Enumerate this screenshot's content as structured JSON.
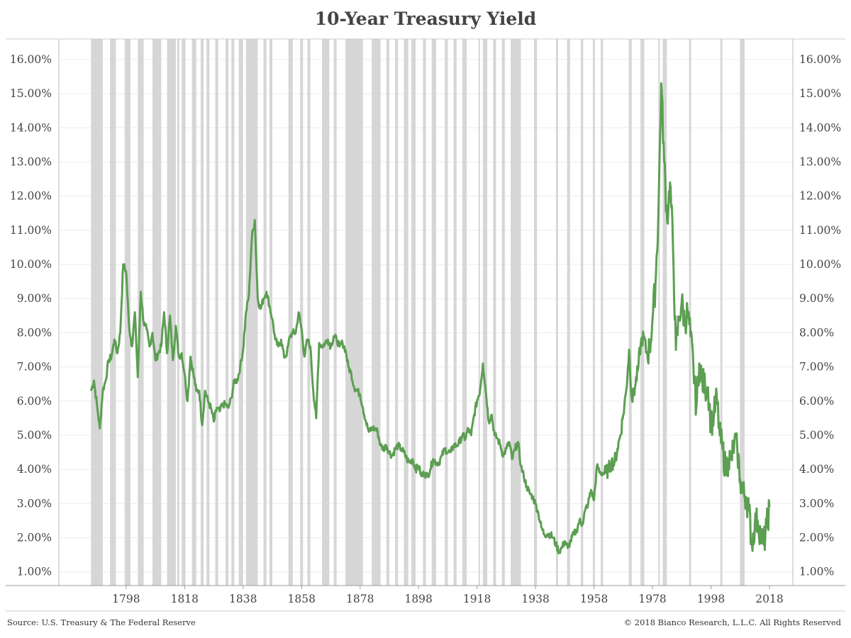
{
  "chart_data": {
    "type": "line",
    "title": "10-Year Treasury Yield",
    "xlabel": "",
    "ylabel": "",
    "x_range": [
      1775,
      2026
    ],
    "x_ticks": [
      "1798",
      "1818",
      "1838",
      "1858",
      "1878",
      "1898",
      "1918",
      "1938",
      "1958",
      "1978",
      "1998",
      "2018"
    ],
    "ylim": [
      0.6,
      16.6
    ],
    "y_ticks": [
      "1.00%",
      "2.00%",
      "3.00%",
      "4.00%",
      "5.00%",
      "6.00%",
      "7.00%",
      "8.00%",
      "9.00%",
      "10.00%",
      "11.00%",
      "12.00%",
      "13.00%",
      "14.00%",
      "15.00%",
      "16.00%"
    ],
    "y_axis_sides": "left and right",
    "grid": true,
    "line_color": "#5c9e52",
    "shade_color": "#d6d6d6",
    "shaded_periods": [
      [
        1786,
        1790
      ],
      [
        1792.5,
        1794.5
      ],
      [
        1797.5,
        1799.5
      ],
      [
        1802,
        1804
      ],
      [
        1807,
        1810
      ],
      [
        1812,
        1815
      ],
      [
        1815.5,
        1816.2
      ],
      [
        1817,
        1818.3
      ],
      [
        1820.5,
        1822
      ],
      [
        1823.5,
        1824.5
      ],
      [
        1825.5,
        1826.5
      ],
      [
        1828.5,
        1829.5
      ],
      [
        1832,
        1833
      ],
      [
        1834,
        1835
      ],
      [
        1836.5,
        1838
      ],
      [
        1839,
        1843
      ],
      [
        1845,
        1846
      ],
      [
        1847,
        1848
      ],
      [
        1853.5,
        1855
      ],
      [
        1857.5,
        1858.5
      ],
      [
        1860,
        1861
      ],
      [
        1865,
        1867.5
      ],
      [
        1869,
        1870
      ],
      [
        1873,
        1879
      ],
      [
        1882,
        1885
      ],
      [
        1887,
        1888
      ],
      [
        1890,
        1891
      ],
      [
        1893,
        1894.5
      ],
      [
        1895.5,
        1897
      ],
      [
        1899.5,
        1900.5
      ],
      [
        1902.5,
        1904
      ],
      [
        1907,
        1908
      ],
      [
        1910,
        1911
      ],
      [
        1913,
        1914.5
      ],
      [
        1918.5,
        1919
      ],
      [
        1920,
        1921.5
      ],
      [
        1923.5,
        1924.5
      ],
      [
        1926.5,
        1927.5
      ],
      [
        1929.5,
        1933
      ],
      [
        1937.5,
        1938.5
      ],
      [
        1945,
        1945.7
      ],
      [
        1948.8,
        1949.8
      ],
      [
        1953.5,
        1954.3
      ],
      [
        1957.6,
        1958.3
      ],
      [
        1960.3,
        1961.1
      ],
      [
        1969.9,
        1970.9
      ],
      [
        1973.9,
        1975.2
      ],
      [
        1980,
        1980.5
      ],
      [
        1981.5,
        1982.9
      ],
      [
        1990.5,
        1991.2
      ],
      [
        2001.2,
        2001.9
      ],
      [
        2007.9,
        2009.5
      ]
    ],
    "series": [
      {
        "values": [
          [
            1786,
            6.3
          ],
          [
            1787,
            6.6
          ],
          [
            1788,
            5.9
          ],
          [
            1789,
            5.2
          ],
          [
            1790,
            6.3
          ],
          [
            1791,
            6.6
          ],
          [
            1792,
            7.2
          ],
          [
            1793,
            7.3
          ],
          [
            1794,
            7.8
          ],
          [
            1795,
            7.4
          ],
          [
            1796,
            8.0
          ],
          [
            1797,
            10.0
          ],
          [
            1798,
            9.8
          ],
          [
            1799,
            8.2
          ],
          [
            1800,
            7.6
          ],
          [
            1801,
            8.6
          ],
          [
            1802,
            6.7
          ],
          [
            1803,
            9.2
          ],
          [
            1804,
            8.3
          ],
          [
            1805,
            8.1
          ],
          [
            1806,
            7.6
          ],
          [
            1807,
            8.0
          ],
          [
            1808,
            7.2
          ],
          [
            1809,
            7.4
          ],
          [
            1810,
            7.6
          ],
          [
            1811,
            8.6
          ],
          [
            1812,
            7.4
          ],
          [
            1813,
            8.5
          ],
          [
            1814,
            7.2
          ],
          [
            1815,
            8.2
          ],
          [
            1816,
            7.3
          ],
          [
            1817,
            7.4
          ],
          [
            1818,
            6.8
          ],
          [
            1819,
            6.0
          ],
          [
            1820,
            7.3
          ],
          [
            1821,
            6.8
          ],
          [
            1822,
            6.3
          ],
          [
            1823,
            6.3
          ],
          [
            1824,
            5.3
          ],
          [
            1825,
            6.3
          ],
          [
            1826,
            6.0
          ],
          [
            1827,
            5.8
          ],
          [
            1828,
            5.4
          ],
          [
            1829,
            5.8
          ],
          [
            1830,
            5.7
          ],
          [
            1831,
            5.9
          ],
          [
            1832,
            5.9
          ],
          [
            1833,
            5.8
          ],
          [
            1834,
            6.1
          ],
          [
            1835,
            6.6
          ],
          [
            1836,
            6.6
          ],
          [
            1837,
            7.0
          ],
          [
            1838,
            7.5
          ],
          [
            1839,
            8.6
          ],
          [
            1840,
            9.1
          ],
          [
            1841,
            10.8
          ],
          [
            1842,
            11.3
          ],
          [
            1843,
            9.0
          ],
          [
            1844,
            8.7
          ],
          [
            1845,
            9.0
          ],
          [
            1846,
            9.2
          ],
          [
            1847,
            8.8
          ],
          [
            1848,
            8.4
          ],
          [
            1849,
            7.8
          ],
          [
            1850,
            7.6
          ],
          [
            1851,
            7.8
          ],
          [
            1852,
            7.3
          ],
          [
            1853,
            7.4
          ],
          [
            1854,
            7.9
          ],
          [
            1855,
            8.0
          ],
          [
            1856,
            8.0
          ],
          [
            1857,
            8.6
          ],
          [
            1858,
            8.1
          ],
          [
            1859,
            7.3
          ],
          [
            1860,
            7.8
          ],
          [
            1861,
            7.6
          ],
          [
            1862,
            6.3
          ],
          [
            1863,
            5.5
          ],
          [
            1864,
            7.7
          ],
          [
            1865,
            7.6
          ],
          [
            1866,
            7.7
          ],
          [
            1867,
            7.8
          ],
          [
            1868,
            7.6
          ],
          [
            1869,
            7.9
          ],
          [
            1870,
            7.8
          ],
          [
            1871,
            7.6
          ],
          [
            1872,
            7.7
          ],
          [
            1873,
            7.5
          ],
          [
            1874,
            7.0
          ],
          [
            1875,
            6.8
          ],
          [
            1876,
            6.4
          ],
          [
            1877,
            6.3
          ],
          [
            1878,
            6.2
          ],
          [
            1879,
            5.8
          ],
          [
            1880,
            5.4
          ],
          [
            1881,
            5.1
          ],
          [
            1882,
            5.2
          ],
          [
            1883,
            5.2
          ],
          [
            1884,
            5.1
          ],
          [
            1885,
            4.7
          ],
          [
            1886,
            4.6
          ],
          [
            1887,
            4.7
          ],
          [
            1888,
            4.5
          ],
          [
            1889,
            4.4
          ],
          [
            1890,
            4.6
          ],
          [
            1891,
            4.7
          ],
          [
            1892,
            4.6
          ],
          [
            1893,
            4.5
          ],
          [
            1894,
            4.3
          ],
          [
            1895,
            4.2
          ],
          [
            1896,
            4.3
          ],
          [
            1897,
            4.0
          ],
          [
            1898,
            4.1
          ],
          [
            1899,
            3.8
          ],
          [
            1900,
            3.9
          ],
          [
            1901,
            3.8
          ],
          [
            1902,
            4.0
          ],
          [
            1903,
            4.3
          ],
          [
            1904,
            4.2
          ],
          [
            1905,
            4.2
          ],
          [
            1906,
            4.4
          ],
          [
            1907,
            4.6
          ],
          [
            1908,
            4.5
          ],
          [
            1909,
            4.5
          ],
          [
            1910,
            4.7
          ],
          [
            1911,
            4.7
          ],
          [
            1912,
            4.8
          ],
          [
            1913,
            5.0
          ],
          [
            1914,
            4.9
          ],
          [
            1915,
            5.2
          ],
          [
            1916,
            5.0
          ],
          [
            1917,
            5.6
          ],
          [
            1918,
            6.0
          ],
          [
            1919,
            6.3
          ],
          [
            1920,
            7.1
          ],
          [
            1921,
            6.3
          ],
          [
            1922,
            5.4
          ],
          [
            1923,
            5.6
          ],
          [
            1924,
            5.0
          ],
          [
            1925,
            4.9
          ],
          [
            1926,
            4.7
          ],
          [
            1927,
            4.4
          ],
          [
            1928,
            4.6
          ],
          [
            1929,
            4.8
          ],
          [
            1930,
            4.3
          ],
          [
            1931,
            4.6
          ],
          [
            1932,
            4.8
          ],
          [
            1933,
            4.1
          ],
          [
            1934,
            3.8
          ],
          [
            1935,
            3.5
          ],
          [
            1936,
            3.3
          ],
          [
            1937,
            3.2
          ],
          [
            1938,
            3.0
          ],
          [
            1939,
            2.7
          ],
          [
            1940,
            2.3
          ],
          [
            1941,
            2.1
          ],
          [
            1942,
            2.1
          ],
          [
            1943,
            2.1
          ],
          [
            1944,
            2.0
          ],
          [
            1945,
            1.8
          ],
          [
            1946,
            1.6
          ],
          [
            1947,
            1.7
          ],
          [
            1948,
            1.9
          ],
          [
            1949,
            1.7
          ],
          [
            1950,
            1.9
          ],
          [
            1951,
            2.1
          ],
          [
            1952,
            2.2
          ],
          [
            1953,
            2.5
          ],
          [
            1954,
            2.4
          ],
          [
            1955,
            2.8
          ],
          [
            1956,
            3.0
          ],
          [
            1957,
            3.4
          ],
          [
            1958,
            3.1
          ],
          [
            1959,
            4.1
          ],
          [
            1960,
            3.9
          ],
          [
            1961,
            3.9
          ],
          [
            1962,
            3.9
          ],
          [
            1963,
            4.0
          ],
          [
            1964,
            4.2
          ],
          [
            1965,
            4.2
          ],
          [
            1966,
            4.6
          ],
          [
            1967,
            5.0
          ],
          [
            1968,
            5.6
          ],
          [
            1969,
            6.3
          ],
          [
            1970,
            7.5
          ],
          [
            1971,
            6.0
          ],
          [
            1972,
            6.4
          ],
          [
            1973,
            6.9
          ],
          [
            1974,
            7.7
          ],
          [
            1975,
            7.9
          ],
          [
            1976,
            7.4
          ],
          [
            1977,
            7.5
          ],
          [
            1978,
            8.4
          ],
          [
            1979,
            9.4
          ],
          [
            1980,
            11.4
          ],
          [
            1981,
            15.3
          ],
          [
            1982,
            13.0
          ],
          [
            1983,
            11.3
          ],
          [
            1984,
            12.4
          ],
          [
            1985,
            10.6
          ],
          [
            1986,
            7.5
          ],
          [
            1987,
            8.4
          ],
          [
            1988,
            8.9
          ],
          [
            1989,
            8.3
          ],
          [
            1990,
            8.6
          ],
          [
            1991,
            7.9
          ],
          [
            1992,
            7.0
          ],
          [
            1993,
            5.8
          ],
          [
            1994,
            7.1
          ],
          [
            1995,
            6.6
          ],
          [
            1996,
            6.4
          ],
          [
            1997,
            6.4
          ],
          [
            1998,
            5.3
          ],
          [
            1999,
            5.6
          ],
          [
            2000,
            6.1
          ],
          [
            2001,
            5.0
          ],
          [
            2002,
            4.6
          ],
          [
            2003,
            4.0
          ],
          [
            2004,
            4.3
          ],
          [
            2005,
            4.3
          ],
          [
            2006,
            4.8
          ],
          [
            2007,
            4.6
          ],
          [
            2008,
            3.7
          ],
          [
            2009,
            3.3
          ],
          [
            2010,
            3.2
          ],
          [
            2011,
            2.8
          ],
          [
            2012,
            1.8
          ],
          [
            2013,
            2.4
          ],
          [
            2014,
            2.5
          ],
          [
            2015,
            2.1
          ],
          [
            2016,
            1.8
          ],
          [
            2017,
            2.3
          ],
          [
            2018,
            2.9
          ]
        ]
      }
    ]
  },
  "footer": {
    "source": "Source: U.S. Treasury & The Federal Reserve",
    "copyright": "© 2018 Bianco Research, L.L.C. All Rights Reserved"
  }
}
